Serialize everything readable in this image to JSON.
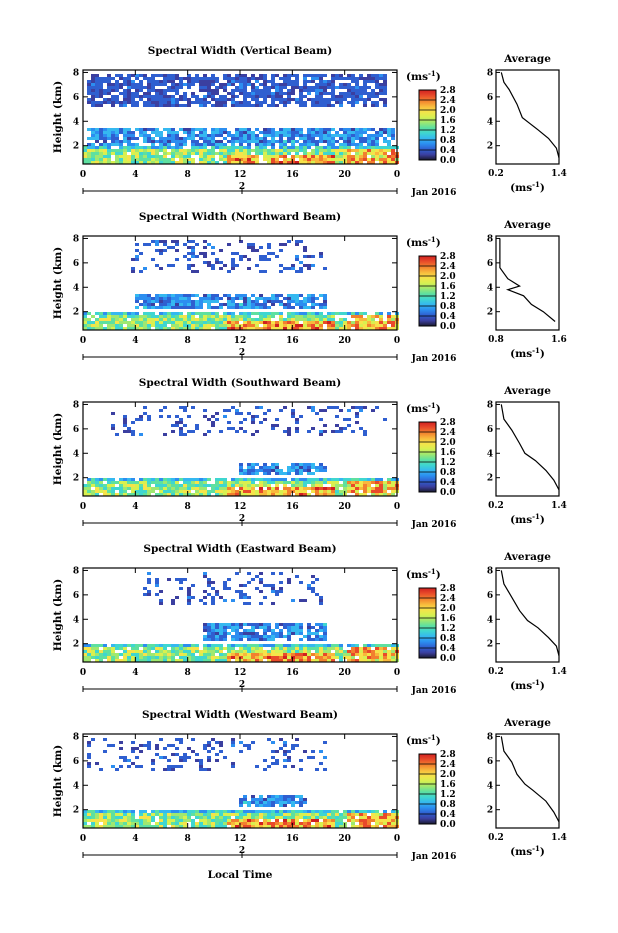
{
  "figure": {
    "xlabel": "Local Time",
    "date_label": "Jan 2016",
    "colorbar_unit": "(ms",
    "colorbar_unit_exp": "-1",
    "colorbar_unit_close": ")",
    "average_title": "Average",
    "colorbar_ticks": [
      "0.0",
      "0.4",
      "0.8",
      "1.2",
      "1.6",
      "2.0",
      "2.4",
      "2.8"
    ],
    "colorscale": [
      "#1a1a2e",
      "#3b3fa0",
      "#2f5fd0",
      "#2c8ef0",
      "#35b8f0",
      "#3fd6d0",
      "#5ee0a0",
      "#9fe870",
      "#d8f050",
      "#f6e34a",
      "#f8b83c",
      "#f2802e",
      "#e84a2a",
      "#d02020"
    ]
  },
  "chart_data": [
    {
      "type": "heatmap",
      "title": "Spectral Width (Vertical Beam)",
      "ylabel": "Height (km)",
      "xticks": [
        "0",
        "4",
        "8",
        "12",
        "16",
        "20",
        "0"
      ],
      "day_marker": "2",
      "yticks": [
        "2",
        "4",
        "6",
        "8"
      ],
      "x_range": [
        0,
        24
      ],
      "y_range": [
        0.5,
        8.2
      ],
      "upper_layer": {
        "x_start": 0.3,
        "x_end": 23.0,
        "y_bottom": 5.3,
        "y_top": 8.0
      },
      "mid_layer": {
        "x_start": 0.2,
        "x_end": 23.8,
        "y_bottom": 2.2,
        "y_top": 3.6
      },
      "low_layer_top": 2.2,
      "average": {
        "xlim": [
          0.2,
          1.4
        ],
        "xticks": [
          "0.2",
          "1.4"
        ],
        "xunit": "(ms",
        "xunit_exp": "-1",
        "xunit_close": ")",
        "yticks": [
          "2",
          "4",
          "6",
          "8"
        ],
        "profile": [
          [
            0.3,
            8.0
          ],
          [
            0.35,
            7.2
          ],
          [
            0.45,
            6.6
          ],
          [
            0.6,
            5.4
          ],
          [
            0.7,
            4.3
          ],
          [
            0.85,
            3.8
          ],
          [
            1.0,
            3.3
          ],
          [
            1.2,
            2.6
          ],
          [
            1.35,
            1.8
          ],
          [
            1.4,
            1.0
          ]
        ]
      }
    },
    {
      "type": "heatmap",
      "title": "Spectral Width (Northward Beam)",
      "ylabel": "Height (km)",
      "xticks": [
        "0",
        "4",
        "8",
        "12",
        "16",
        "20",
        "0"
      ],
      "day_marker": "2",
      "yticks": [
        "2",
        "4",
        "6",
        "8"
      ],
      "x_range": [
        0,
        24
      ],
      "y_range": [
        0.5,
        8.2
      ],
      "upper_layer": {
        "x_start": 3.5,
        "x_end": 18.5,
        "y_bottom": 5.2,
        "y_top": 8.0
      },
      "mid_layer": {
        "x_start": 3.8,
        "x_end": 18.5,
        "y_bottom": 2.4,
        "y_top": 3.6
      },
      "low_layer_top": 2.0,
      "average": {
        "xlim": [
          0.8,
          1.6
        ],
        "xticks": [
          "0.8",
          "1.6"
        ],
        "xunit": "(ms",
        "xunit_exp": "-1",
        "xunit_close": ")",
        "yticks": [
          "2",
          "4",
          "6",
          "8"
        ],
        "profile": [
          [
            0.85,
            8.0
          ],
          [
            0.85,
            5.6
          ],
          [
            0.95,
            4.7
          ],
          [
            1.1,
            4.1
          ],
          [
            0.95,
            3.8
          ],
          [
            1.15,
            3.3
          ],
          [
            1.25,
            2.6
          ],
          [
            1.4,
            2.0
          ],
          [
            1.55,
            1.2
          ]
        ]
      }
    },
    {
      "type": "heatmap",
      "title": "Spectral Width (Southward Beam)",
      "ylabel": "Height (km)",
      "xticks": [
        "0",
        "4",
        "8",
        "12",
        "16",
        "20",
        "0"
      ],
      "day_marker": "2",
      "yticks": [
        "2",
        "4",
        "6",
        "8"
      ],
      "x_range": [
        0,
        24
      ],
      "y_range": [
        0.5,
        8.2
      ],
      "upper_layer": {
        "x_start": 2.0,
        "x_end": 23.0,
        "y_bottom": 5.6,
        "y_top": 8.0
      },
      "mid_layer": {
        "x_start": 11.8,
        "x_end": 18.5,
        "y_bottom": 2.4,
        "y_top": 3.4
      },
      "low_layer_top": 2.0,
      "average": {
        "xlim": [
          0.2,
          1.4
        ],
        "xticks": [
          "0.2",
          "1.4"
        ],
        "xunit": "(ms",
        "xunit_exp": "-1",
        "xunit_close": ")",
        "yticks": [
          "2",
          "4",
          "6",
          "8"
        ],
        "profile": [
          [
            0.3,
            8.0
          ],
          [
            0.35,
            6.8
          ],
          [
            0.5,
            5.9
          ],
          [
            0.65,
            4.8
          ],
          [
            0.75,
            4.0
          ],
          [
            0.95,
            3.4
          ],
          [
            1.15,
            2.6
          ],
          [
            1.3,
            1.8
          ],
          [
            1.4,
            1.0
          ]
        ]
      }
    },
    {
      "type": "heatmap",
      "title": "Spectral Width (Eastward Beam)",
      "ylabel": "Height (km)",
      "xticks": [
        "0",
        "4",
        "8",
        "12",
        "16",
        "20",
        "0"
      ],
      "day_marker": "2",
      "yticks": [
        "2",
        "4",
        "6",
        "8"
      ],
      "x_range": [
        0,
        24
      ],
      "y_range": [
        0.5,
        8.2
      ],
      "upper_layer": {
        "x_start": 4.5,
        "x_end": 18.5,
        "y_bottom": 5.4,
        "y_top": 8.0
      },
      "mid_layer": {
        "x_start": 9.0,
        "x_end": 18.5,
        "y_bottom": 2.4,
        "y_top": 3.8
      },
      "low_layer_top": 2.0,
      "average": {
        "xlim": [
          0.2,
          1.4
        ],
        "xticks": [
          "0.2",
          "1.4"
        ],
        "xunit": "(ms",
        "xunit_exp": "-1",
        "xunit_close": ")",
        "yticks": [
          "2",
          "4",
          "6",
          "8"
        ],
        "profile": [
          [
            0.3,
            8.0
          ],
          [
            0.35,
            6.9
          ],
          [
            0.5,
            5.8
          ],
          [
            0.65,
            4.7
          ],
          [
            0.8,
            3.9
          ],
          [
            1.0,
            3.3
          ],
          [
            1.2,
            2.5
          ],
          [
            1.35,
            1.8
          ],
          [
            1.4,
            1.0
          ]
        ]
      }
    },
    {
      "type": "heatmap",
      "title": "Spectral Width (Westward Beam)",
      "ylabel": "Height (km)",
      "xticks": [
        "0",
        "4",
        "8",
        "12",
        "16",
        "20",
        "0"
      ],
      "day_marker": "2",
      "yticks": [
        "2",
        "4",
        "6",
        "8"
      ],
      "x_range": [
        0,
        24
      ],
      "y_range": [
        0.5,
        8.2
      ],
      "upper_layer": {
        "x_start": 0.3,
        "x_end": 18.5,
        "y_bottom": 5.4,
        "y_top": 8.0
      },
      "mid_layer": {
        "x_start": 11.8,
        "x_end": 17.0,
        "y_bottom": 2.4,
        "y_top": 3.4
      },
      "low_layer_top": 2.0,
      "average": {
        "xlim": [
          0.2,
          1.4
        ],
        "xticks": [
          "0.2",
          "1.4"
        ],
        "xunit": "(ms",
        "xunit_exp": "-1",
        "xunit_close": ")",
        "yticks": [
          "2",
          "4",
          "6",
          "8"
        ],
        "profile": [
          [
            0.3,
            8.0
          ],
          [
            0.35,
            6.8
          ],
          [
            0.5,
            5.9
          ],
          [
            0.6,
            4.9
          ],
          [
            0.75,
            4.1
          ],
          [
            0.9,
            3.6
          ],
          [
            1.15,
            2.7
          ],
          [
            1.3,
            1.8
          ],
          [
            1.4,
            1.0
          ]
        ]
      }
    }
  ]
}
